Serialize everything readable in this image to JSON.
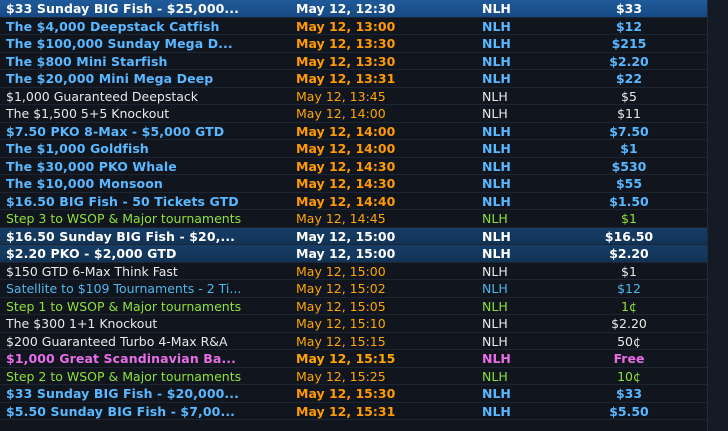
{
  "tournaments": [
    {
      "name": "$33 Sunday BIG Fish - $25,000...",
      "date": "May 12, 12:30",
      "game": "NLH",
      "buyin": "$33",
      "style": "sel",
      "weight": "bold"
    },
    {
      "name": "The $4,000 Deepstack Catfish",
      "date": "May 12, 13:00",
      "game": "NLH",
      "buyin": "$12",
      "style": "blue",
      "weight": "bold"
    },
    {
      "name": "The $100,000 Sunday Mega D...",
      "date": "May 12, 13:30",
      "game": "NLH",
      "buyin": "$215",
      "style": "blue",
      "weight": "bold"
    },
    {
      "name": "The $800 Mini Starfish",
      "date": "May 12, 13:30",
      "game": "NLH",
      "buyin": "$2.20",
      "style": "blue",
      "weight": "bold"
    },
    {
      "name": "The $20,000 Mini Mega Deep",
      "date": "May 12, 13:31",
      "game": "NLH",
      "buyin": "$22",
      "style": "blue",
      "weight": "bold"
    },
    {
      "name": "$1,000 Guaranteed Deepstack",
      "date": "May 12, 13:45",
      "game": "NLH",
      "buyin": "$5",
      "style": "white",
      "weight": "normal"
    },
    {
      "name": "The $1,500 5+5 Knockout",
      "date": "May 12, 14:00",
      "game": "NLH",
      "buyin": "$11",
      "style": "white",
      "weight": "normal"
    },
    {
      "name": "$7.50 PKO 8-Max - $5,000 GTD",
      "date": "May 12, 14:00",
      "game": "NLH",
      "buyin": "$7.50",
      "style": "blue",
      "weight": "bold"
    },
    {
      "name": "The $1,000 Goldfish",
      "date": "May 12, 14:00",
      "game": "NLH",
      "buyin": "$1",
      "style": "blue",
      "weight": "bold"
    },
    {
      "name": "The $30,000 PKO Whale",
      "date": "May 12, 14:30",
      "game": "NLH",
      "buyin": "$530",
      "style": "blue",
      "weight": "bold"
    },
    {
      "name": "The $10,000 Monsoon",
      "date": "May 12, 14:30",
      "game": "NLH",
      "buyin": "$55",
      "style": "blue",
      "weight": "bold"
    },
    {
      "name": "$16.50 BIG Fish - 50 Tickets GTD",
      "date": "May 12, 14:40",
      "game": "NLH",
      "buyin": "$1.50",
      "style": "blue",
      "weight": "bold"
    },
    {
      "name": "Step 3 to WSOP & Major tournaments",
      "date": "May 12, 14:45",
      "game": "NLH",
      "buyin": "$1",
      "style": "green",
      "weight": "normal"
    },
    {
      "name": "$16.50 Sunday BIG Fish - $20,...",
      "date": "May 12, 15:00",
      "game": "NLH",
      "buyin": "$16.50",
      "style": "sel",
      "weight": "bold",
      "bg": "hl"
    },
    {
      "name": "$2.20 PKO - $2,000 GTD",
      "date": "May 12, 15:00",
      "game": "NLH",
      "buyin": "$2.20",
      "style": "sel",
      "weight": "bold",
      "bg": "hl"
    },
    {
      "name": "$150 GTD 6-Max Think Fast",
      "date": "May 12, 15:00",
      "game": "NLH",
      "buyin": "$1",
      "style": "white",
      "weight": "normal"
    },
    {
      "name": "Satellite to $109 Tournaments - 2 Ti...",
      "date": "May 12, 15:02",
      "game": "NLH",
      "buyin": "$12",
      "style": "cyan",
      "weight": "normal"
    },
    {
      "name": "Step 1 to WSOP & Major tournaments",
      "date": "May 12, 15:05",
      "game": "NLH",
      "buyin": "1¢",
      "style": "green",
      "weight": "normal"
    },
    {
      "name": "The $300 1+1 Knockout",
      "date": "May 12, 15:10",
      "game": "NLH",
      "buyin": "$2.20",
      "style": "white",
      "weight": "normal"
    },
    {
      "name": "$200 Guaranteed Turbo 4-Max R&A",
      "date": "May 12, 15:15",
      "game": "NLH",
      "buyin": "50¢",
      "style": "white",
      "weight": "normal"
    },
    {
      "name": "$1,000 Great Scandinavian Ba...",
      "date": "May 12, 15:15",
      "game": "NLH",
      "buyin": "Free",
      "style": "pink",
      "weight": "bold"
    },
    {
      "name": "Step 2 to WSOP & Major tournaments",
      "date": "May 12, 15:25",
      "game": "NLH",
      "buyin": "10¢",
      "style": "green",
      "weight": "normal"
    },
    {
      "name": "$33 Sunday BIG Fish - $20,000...",
      "date": "May 12, 15:30",
      "game": "NLH",
      "buyin": "$33",
      "style": "blue",
      "weight": "bold"
    },
    {
      "name": "$5.50 Sunday BIG Fish - $7,00...",
      "date": "May 12, 15:31",
      "game": "NLH",
      "buyin": "$5.50",
      "style": "blue",
      "weight": "bold"
    }
  ]
}
